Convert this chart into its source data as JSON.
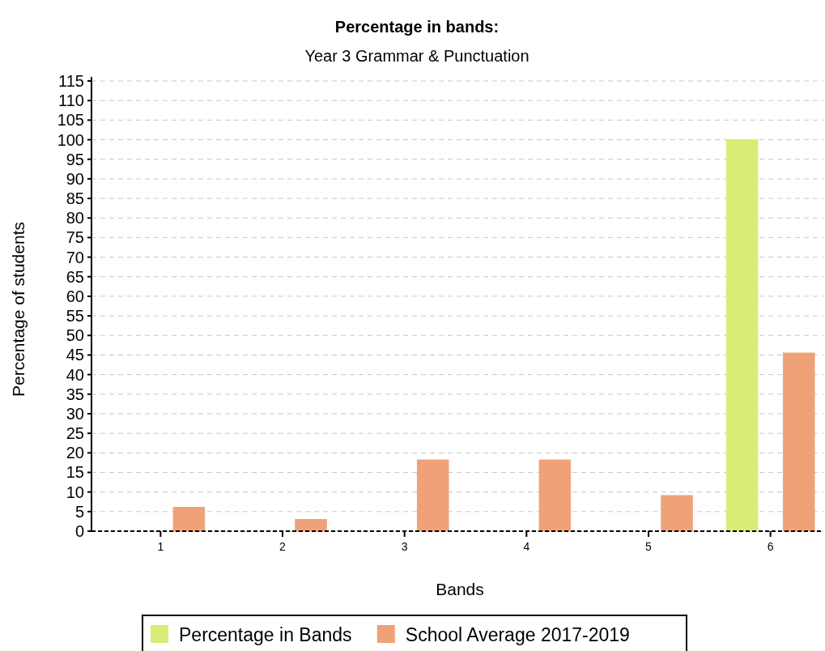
{
  "chart_data": {
    "type": "bar",
    "title": "Percentage in bands:",
    "subtitle": "Year 3 Grammar & Punctuation",
    "xlabel": "Bands",
    "ylabel": "Percentage of students",
    "categories": [
      "1",
      "2",
      "3",
      "4",
      "5",
      "6"
    ],
    "series": [
      {
        "name": "Percentage in Bands",
        "color": "#d7ed76",
        "values": [
          0,
          0,
          0,
          0,
          0,
          100
        ]
      },
      {
        "name": "School Average 2017-2019",
        "color": "#efa278",
        "values": [
          6.1,
          3.0,
          18.2,
          18.2,
          9.1,
          45.5
        ]
      }
    ],
    "ylim": [
      0,
      115
    ],
    "yticks": [
      0,
      5,
      10,
      15,
      20,
      25,
      30,
      35,
      40,
      45,
      50,
      55,
      60,
      65,
      70,
      75,
      80,
      85,
      90,
      95,
      100,
      105,
      110,
      115
    ],
    "grid": "y",
    "legend": "bottom"
  }
}
